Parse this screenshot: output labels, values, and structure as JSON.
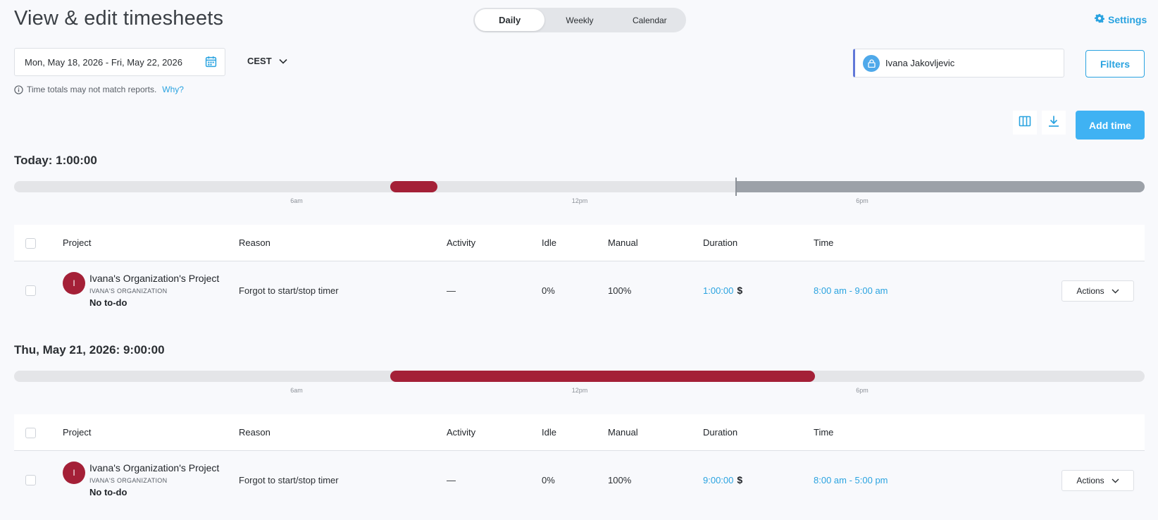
{
  "header": {
    "title": "View & edit timesheets",
    "views": [
      {
        "label": "Daily",
        "active": true
      },
      {
        "label": "Weekly",
        "active": false
      },
      {
        "label": "Calendar",
        "active": false
      }
    ],
    "settings_label": "Settings"
  },
  "filters": {
    "date_range": "Mon, May 18, 2026 - Fri, May 22, 2026",
    "timezone": "CEST",
    "notice": "Time totals may not match reports.",
    "notice_link": "Why?",
    "member": "Ivana Jakovljevic",
    "filters_label": "Filters"
  },
  "toolbar": {
    "columns_icon": "columns-icon",
    "download_icon": "download-icon",
    "add_time_label": "Add time"
  },
  "colors": {
    "accent": "#2aa3e0",
    "primary_button": "#3fb2f3",
    "project": "#a42037",
    "future": "#9ca1a8"
  },
  "table_headers": [
    "Project",
    "Reason",
    "Activity",
    "Idle",
    "Manual",
    "Duration",
    "Time"
  ],
  "days": [
    {
      "heading": "Today: 1:00:00",
      "ticks": [
        "6am",
        "12pm",
        "6pm"
      ],
      "entries": [
        {
          "avatar": "I",
          "project": "Ivana's Organization's Project",
          "organization": "IVANA'S ORGANIZATION",
          "todo": "No to-do",
          "reason": "Forgot to start/stop timer",
          "activity": "—",
          "idle": "0%",
          "manual": "100%",
          "duration": "1:00:00",
          "billable": "$",
          "time": "8:00 am - 9:00 am",
          "actions_label": "Actions"
        }
      ]
    },
    {
      "heading": "Thu, May 21, 2026: 9:00:00",
      "ticks": [
        "6am",
        "12pm",
        "6pm"
      ],
      "entries": [
        {
          "avatar": "I",
          "project": "Ivana's Organization's Project",
          "organization": "IVANA'S ORGANIZATION",
          "todo": "No to-do",
          "reason": "Forgot to start/stop timer",
          "activity": "—",
          "idle": "0%",
          "manual": "100%",
          "duration": "9:00:00",
          "billable": "$",
          "time": "8:00 am - 5:00 pm",
          "actions_label": "Actions"
        }
      ]
    }
  ]
}
